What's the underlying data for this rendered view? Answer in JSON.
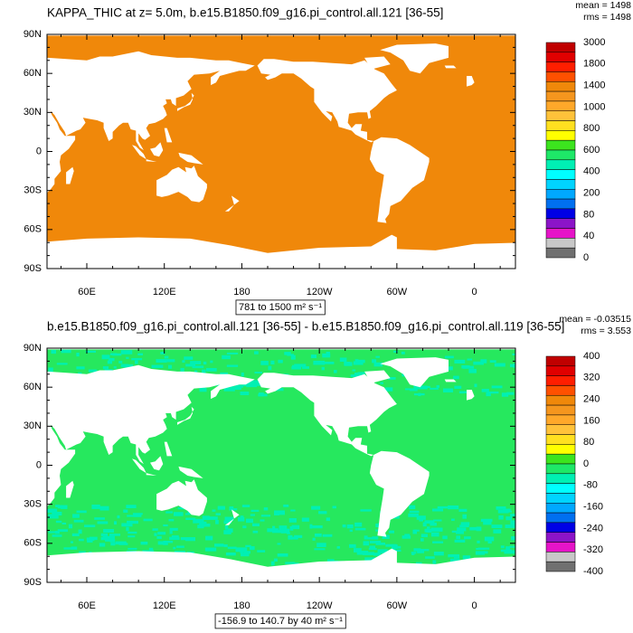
{
  "panels": [
    {
      "title": "KAPPA_THIC at z=   5.0m, b.e15.B1850.f09_g16.pi_control.all.121 [36-55]",
      "stats": [
        "mean = 1498",
        "rms = 1498"
      ],
      "fill_color": "#f0880a",
      "lat_labels": [
        "90N",
        "60N",
        "30N",
        "0",
        "30S",
        "60S",
        "90S"
      ],
      "lon_labels": [
        "60E",
        "120E",
        "180",
        "120W",
        "60W",
        "0"
      ],
      "colorbar": {
        "colors": [
          "#c00000",
          "#e00000",
          "#ff1e00",
          "#ff5000",
          "#f0880a",
          "#f5961e",
          "#ffa82a",
          "#ffc23a",
          "#ffe020",
          "#ffff00",
          "#3ce41e",
          "#1ee868",
          "#00f0b4",
          "#00ffff",
          "#00d4ff",
          "#00a8ff",
          "#0070f0",
          "#0000e6",
          "#8c14c8",
          "#e614c8",
          "#c8c8c8",
          "#707070"
        ],
        "labels": [
          "3000",
          "1800",
          "1400",
          "1000",
          "800",
          "600",
          "400",
          "200",
          "80",
          "40",
          "0"
        ]
      },
      "range": "781 to 1500 m² s⁻¹"
    },
    {
      "title": "b.e15.B1850.f09_g16.pi_control.all.121 [36-55] - b.e15.B1850.f09_g16.pi_control.all.119 [36-55]",
      "stats": [
        "mean = -0.03515",
        "rms = 3.553"
      ],
      "fill_color": "#26e85e",
      "lat_labels": [
        "90N",
        "60N",
        "30N",
        "0",
        "30S",
        "60S",
        "90S"
      ],
      "lon_labels": [
        "60E",
        "120E",
        "180",
        "120W",
        "60W",
        "0"
      ],
      "colorbar": {
        "colors": [
          "#c00000",
          "#e00000",
          "#ff1e00",
          "#ff5000",
          "#f0880a",
          "#f5961e",
          "#ffa82a",
          "#ffc23a",
          "#ffe020",
          "#ffff00",
          "#3ce41e",
          "#1ee868",
          "#00f0b4",
          "#00ffff",
          "#00d4ff",
          "#00a8ff",
          "#0070f0",
          "#0000e6",
          "#8c14c8",
          "#e614c8",
          "#c8c8c8",
          "#707070"
        ],
        "labels": [
          "400",
          "320",
          "240",
          "160",
          "80",
          "0",
          "-80",
          "-160",
          "-240",
          "-320",
          "-400"
        ]
      },
      "range": "-156.9 to 140.7 by 40 m² s⁻¹"
    }
  ]
}
